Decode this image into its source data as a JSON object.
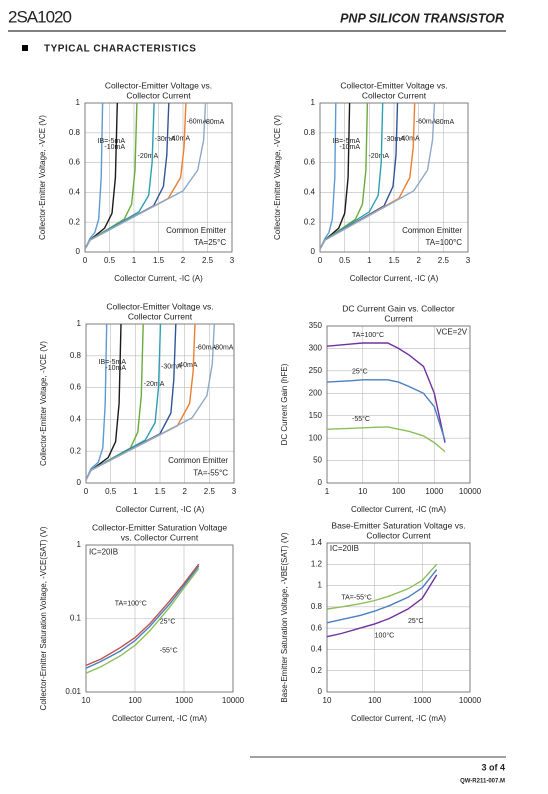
{
  "header": {
    "part": "2SA1020",
    "title": "PNP SILICON TRANSISTOR"
  },
  "section": "TYPICAL CHARACTERISTICS",
  "chart_data": [
    {
      "type": "line",
      "title": [
        "Collector-Emitter Voltage vs.",
        "Collector Current"
      ],
      "x_label": "Collector Current, -IC (A)",
      "y_label": "Collector-Emitter Voltage, -VCE (V)",
      "xlim": [
        0,
        3
      ],
      "xticks": [
        0,
        0.5,
        1,
        1.5,
        2,
        2.5,
        3
      ],
      "ylim": [
        0,
        1
      ],
      "yticks": [
        0,
        0.2,
        0.4,
        0.6,
        0.8,
        1
      ],
      "grid": true,
      "annotations": [
        "Common Emitter",
        "TA=25°C"
      ],
      "series": [
        {
          "name": "IB=-5mA",
          "color": "#5b9bd5",
          "x": [
            0,
            0.1,
            0.2,
            0.28,
            0.33,
            0.36
          ],
          "values": [
            0.02,
            0.09,
            0.13,
            0.22,
            0.5,
            1
          ]
        },
        {
          "name": "-10mA",
          "color": "#1a1a1a",
          "x": [
            0,
            0.1,
            0.4,
            0.55,
            0.62,
            0.66
          ],
          "values": [
            0.02,
            0.08,
            0.16,
            0.26,
            0.5,
            1
          ]
        },
        {
          "name": "-20mA",
          "color": "#6aaa3a",
          "x": [
            0,
            0.1,
            0.8,
            0.95,
            1.02,
            1.06
          ],
          "values": [
            0.02,
            0.08,
            0.22,
            0.32,
            0.55,
            1
          ]
        },
        {
          "name": "-30mA",
          "color": "#2e9fb0",
          "x": [
            0,
            0.1,
            1.1,
            1.3,
            1.37,
            1.41
          ],
          "values": [
            0.02,
            0.08,
            0.27,
            0.38,
            0.6,
            1
          ]
        },
        {
          "name": "-40mA",
          "color": "#2f5597",
          "x": [
            0,
            0.1,
            1.4,
            1.6,
            1.67,
            1.71
          ],
          "values": [
            0.02,
            0.08,
            0.31,
            0.44,
            0.65,
            1
          ]
        },
        {
          "name": "-60mA",
          "color": "#ed7d31",
          "x": [
            0,
            0.1,
            1.7,
            1.95,
            2.02,
            2.06
          ],
          "values": [
            0.02,
            0.08,
            0.36,
            0.5,
            0.7,
            1
          ]
        },
        {
          "name": "-80mA",
          "color": "#8fa9c8",
          "x": [
            0,
            0.1,
            2.0,
            2.3,
            2.42,
            2.46
          ],
          "values": [
            0.02,
            0.08,
            0.41,
            0.55,
            0.75,
            1
          ]
        }
      ]
    },
    {
      "type": "line",
      "title": [
        "Collector-Emitter Voltage vs.",
        "Collector Current"
      ],
      "x_label": "Collector Current, -IC (A)",
      "y_label": "Collector-Emitter Voltage, -VCE (V)",
      "xlim": [
        0,
        3
      ],
      "xticks": [
        0,
        0.5,
        1,
        1.5,
        2,
        2.5,
        3
      ],
      "ylim": [
        0,
        1
      ],
      "yticks": [
        0,
        0.2,
        0.4,
        0.6,
        0.8,
        1
      ],
      "grid": true,
      "annotations": [
        "Common Emitter",
        "TA=100°C"
      ],
      "series": [
        {
          "name": "IB=-5mA",
          "color": "#5b9bd5",
          "x": [
            0,
            0.1,
            0.18,
            0.25,
            0.3,
            0.32
          ],
          "values": [
            0.02,
            0.09,
            0.13,
            0.22,
            0.5,
            1
          ]
        },
        {
          "name": "-10mA",
          "color": "#1a1a1a",
          "x": [
            0,
            0.1,
            0.38,
            0.5,
            0.57,
            0.6
          ],
          "values": [
            0.02,
            0.08,
            0.16,
            0.26,
            0.5,
            1
          ]
        },
        {
          "name": "-20mA",
          "color": "#6aaa3a",
          "x": [
            0,
            0.1,
            0.72,
            0.86,
            0.93,
            0.96
          ],
          "values": [
            0.02,
            0.08,
            0.22,
            0.32,
            0.55,
            1
          ]
        },
        {
          "name": "-30mA",
          "color": "#2e9fb0",
          "x": [
            0,
            0.1,
            1.0,
            1.18,
            1.24,
            1.27
          ],
          "values": [
            0.02,
            0.08,
            0.27,
            0.38,
            0.6,
            1
          ]
        },
        {
          "name": "-40mA",
          "color": "#2f5597",
          "x": [
            0,
            0.1,
            1.3,
            1.48,
            1.54,
            1.57
          ],
          "values": [
            0.02,
            0.08,
            0.31,
            0.44,
            0.65,
            1
          ]
        },
        {
          "name": "-60mA",
          "color": "#ed7d31",
          "x": [
            0,
            0.1,
            1.6,
            1.82,
            1.89,
            1.92
          ],
          "values": [
            0.02,
            0.08,
            0.36,
            0.5,
            0.7,
            1
          ]
        },
        {
          "name": "-80mA",
          "color": "#8fa9c8",
          "x": [
            0,
            0.1,
            1.9,
            2.18,
            2.28,
            2.32
          ],
          "values": [
            0.02,
            0.08,
            0.41,
            0.55,
            0.75,
            1
          ]
        }
      ]
    },
    {
      "type": "line",
      "title": [
        "Collector-Emitter Voltage vs.",
        "Collector Current"
      ],
      "x_label": "Collector Current, -IC (A)",
      "y_label": "Collector-Emitter Voltage, -VCE (V)",
      "xlim": [
        0,
        3
      ],
      "xticks": [
        0,
        0.5,
        1,
        1.5,
        2,
        2.5,
        3
      ],
      "ylim": [
        0,
        1
      ],
      "yticks": [
        0,
        0.2,
        0.4,
        0.6,
        0.8,
        1
      ],
      "grid": true,
      "annotations": [
        "Common Emitter",
        "TA=-55°C"
      ],
      "series": [
        {
          "name": "IB=-5mA",
          "color": "#5b9bd5",
          "x": [
            0,
            0.1,
            0.25,
            0.34,
            0.39,
            0.42
          ],
          "values": [
            0.02,
            0.09,
            0.13,
            0.22,
            0.5,
            1
          ]
        },
        {
          "name": "-10mA",
          "color": "#1a1a1a",
          "x": [
            0,
            0.1,
            0.45,
            0.6,
            0.67,
            0.71
          ],
          "values": [
            0.02,
            0.08,
            0.16,
            0.26,
            0.5,
            1
          ]
        },
        {
          "name": "-20mA",
          "color": "#6aaa3a",
          "x": [
            0,
            0.1,
            0.9,
            1.05,
            1.12,
            1.16
          ],
          "values": [
            0.02,
            0.08,
            0.22,
            0.32,
            0.55,
            1
          ]
        },
        {
          "name": "-30mA",
          "color": "#2e9fb0",
          "x": [
            0,
            0.1,
            1.2,
            1.4,
            1.47,
            1.51
          ],
          "values": [
            0.02,
            0.08,
            0.27,
            0.38,
            0.6,
            1
          ]
        },
        {
          "name": "-40mA",
          "color": "#2f5597",
          "x": [
            0,
            0.1,
            1.5,
            1.72,
            1.78,
            1.82
          ],
          "values": [
            0.02,
            0.08,
            0.31,
            0.44,
            0.65,
            1
          ]
        },
        {
          "name": "-60mA",
          "color": "#ed7d31",
          "x": [
            0,
            0.1,
            1.85,
            2.1,
            2.17,
            2.21
          ],
          "values": [
            0.02,
            0.08,
            0.36,
            0.5,
            0.7,
            1
          ]
        },
        {
          "name": "-80mA",
          "color": "#8fa9c8",
          "x": [
            0,
            0.1,
            2.15,
            2.45,
            2.56,
            2.6
          ],
          "values": [
            0.02,
            0.08,
            0.41,
            0.55,
            0.75,
            1
          ]
        }
      ]
    },
    {
      "type": "line",
      "title": [
        "DC Current Gain vs. Collector",
        "Current"
      ],
      "x_label": "Collector Current, -IC (mA)",
      "y_label": "DC Current Gain (hFE)",
      "log_x": true,
      "xlim": [
        1,
        10000
      ],
      "xticks": [
        1,
        10,
        100,
        1000,
        10000
      ],
      "ylim": [
        0,
        350
      ],
      "yticks": [
        0,
        50,
        100,
        150,
        200,
        250,
        300,
        350
      ],
      "grid": true,
      "annotations": [
        "VCE=2V"
      ],
      "series": [
        {
          "name": "TA=100°C",
          "color": "#7030a0",
          "x": [
            1,
            5,
            10,
            50,
            100,
            200,
            500,
            1000,
            2000
          ],
          "values": [
            305,
            310,
            312,
            312,
            300,
            285,
            260,
            200,
            90
          ]
        },
        {
          "name": "25°C",
          "color": "#4a7fc0",
          "x": [
            1,
            5,
            10,
            50,
            100,
            200,
            500,
            1000,
            2000
          ],
          "values": [
            225,
            228,
            230,
            230,
            225,
            215,
            200,
            170,
            95
          ]
        },
        {
          "name": "-55°C",
          "color": "#8cbf5a",
          "x": [
            1,
            5,
            10,
            50,
            100,
            200,
            500,
            1000,
            2000
          ],
          "values": [
            120,
            122,
            123,
            125,
            120,
            115,
            105,
            90,
            70
          ]
        }
      ]
    },
    {
      "type": "line",
      "title": [
        "Collector-Emitter Saturation Voltage",
        "vs. Collector Current"
      ],
      "x_label": "Collector Current, -IC (mA)",
      "y_label": "Collector-Emitter Saturation Voltage, -VCE(SAT) (V)",
      "log_x": true,
      "log_y": true,
      "xlim": [
        10,
        10000
      ],
      "xticks": [
        10,
        100,
        1000,
        10000
      ],
      "ylim": [
        0.01,
        1
      ],
      "yticks": [
        0.01,
        0.1,
        1
      ],
      "grid": true,
      "annotations": [
        "IC=20IB"
      ],
      "series": [
        {
          "name": "TA=100°C",
          "color": "#c0504d",
          "x": [
            10,
            20,
            50,
            100,
            200,
            500,
            1000,
            2000
          ],
          "values": [
            0.023,
            0.028,
            0.04,
            0.055,
            0.085,
            0.17,
            0.3,
            0.55
          ]
        },
        {
          "name": "25°C",
          "color": "#4a7fc0",
          "x": [
            10,
            20,
            50,
            100,
            200,
            500,
            1000,
            2000
          ],
          "values": [
            0.021,
            0.026,
            0.036,
            0.05,
            0.078,
            0.155,
            0.28,
            0.52
          ]
        },
        {
          "name": "-55°C",
          "color": "#8cbf5a",
          "x": [
            10,
            20,
            50,
            100,
            200,
            500,
            1000,
            2000
          ],
          "values": [
            0.018,
            0.022,
            0.031,
            0.043,
            0.068,
            0.14,
            0.26,
            0.48
          ]
        }
      ]
    },
    {
      "type": "line",
      "title": [
        "Base-Emitter Saturation Voltage vs.",
        "Collector Current"
      ],
      "x_label": "Collector Current, -IC (mA)",
      "y_label": "Base-Emitter Saturation Voltage, -VBE(SAT) (V)",
      "log_x": true,
      "xlim": [
        10,
        10000
      ],
      "xticks": [
        10,
        100,
        1000,
        10000
      ],
      "ylim": [
        0,
        1.4
      ],
      "yticks": [
        0,
        0.2,
        0.4,
        0.6,
        0.8,
        1,
        1.2,
        1.4
      ],
      "grid": true,
      "annotations": [
        "IC=20IB"
      ],
      "series": [
        {
          "name": "TA=-55°C",
          "color": "#8cbf5a",
          "x": [
            10,
            20,
            50,
            100,
            200,
            500,
            1000,
            2000
          ],
          "values": [
            0.78,
            0.8,
            0.83,
            0.86,
            0.9,
            0.97,
            1.05,
            1.2
          ]
        },
        {
          "name": "25°C",
          "color": "#4a7fc0",
          "x": [
            10,
            20,
            50,
            100,
            200,
            500,
            1000,
            2000
          ],
          "values": [
            0.65,
            0.68,
            0.72,
            0.76,
            0.81,
            0.89,
            0.98,
            1.15
          ]
        },
        {
          "name": "100°C",
          "color": "#7030a0",
          "x": [
            10,
            20,
            50,
            100,
            200,
            500,
            1000,
            2000
          ],
          "values": [
            0.52,
            0.55,
            0.6,
            0.64,
            0.69,
            0.78,
            0.88,
            1.1
          ]
        }
      ]
    }
  ],
  "footer": {
    "page": "3 of 4",
    "doc": "QW-R211-007.M"
  }
}
